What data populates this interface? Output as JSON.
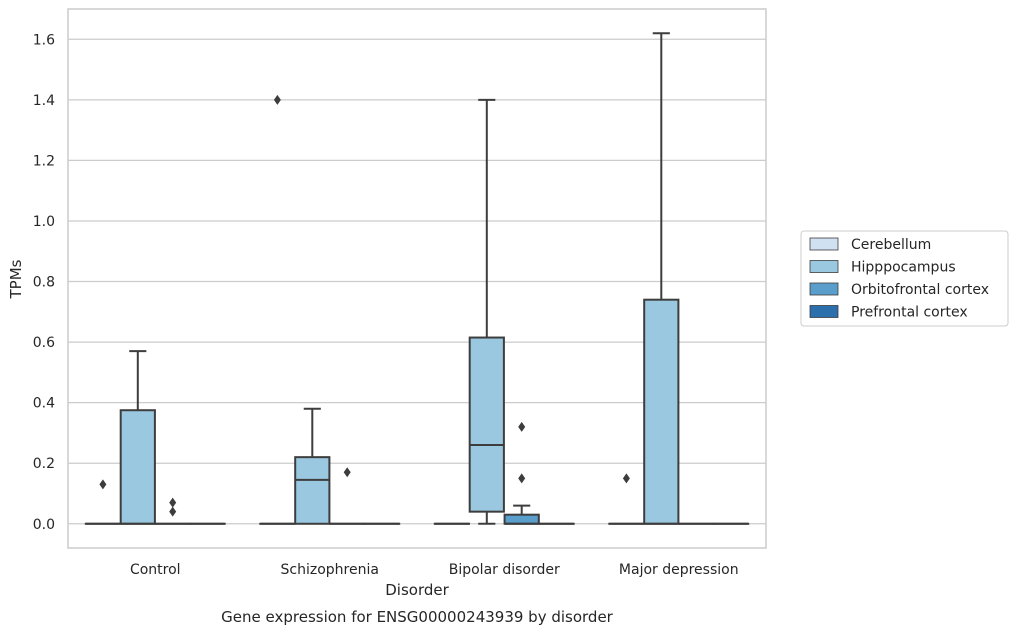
{
  "chart_data": {
    "type": "box",
    "title": "",
    "caption": "Gene expression for ENSG00000243939 by disorder",
    "xlabel": "Disorder",
    "ylabel": "TPMs",
    "ylim": [
      -0.08,
      1.7
    ],
    "yticks": [
      "0.0",
      "0.2",
      "0.4",
      "0.6",
      "0.8",
      "1.0",
      "1.2",
      "1.4",
      "1.6"
    ],
    "grid": true,
    "legend_position": "center-right",
    "categories": [
      "Control",
      "Schizophrenia",
      "Bipolar disorder",
      "Major depression"
    ],
    "series": [
      {
        "name": "Cerebellum",
        "color": "#d0e1f2",
        "boxes": [
          {
            "q1": 0,
            "median": 0,
            "q3": 0,
            "whislo": 0,
            "whishi": 0,
            "fliers": [
              0.13
            ]
          },
          {
            "q1": 0,
            "median": 0,
            "q3": 0,
            "whislo": 0,
            "whishi": 0,
            "fliers": [
              1.4
            ]
          },
          {
            "q1": 0,
            "median": 0,
            "q3": 0,
            "whislo": 0,
            "whishi": 0,
            "fliers": []
          },
          {
            "q1": 0,
            "median": 0,
            "q3": 0,
            "whislo": 0,
            "whishi": 0,
            "fliers": [
              0.15
            ]
          }
        ]
      },
      {
        "name": "Hipppocampus",
        "color": "#9ac8e0",
        "boxes": [
          {
            "q1": 0,
            "median": 0,
            "q3": 0.375,
            "whislo": 0,
            "whishi": 0.57,
            "fliers": []
          },
          {
            "q1": 0,
            "median": 0.145,
            "q3": 0.22,
            "whislo": 0,
            "whishi": 0.38,
            "fliers": []
          },
          {
            "q1": 0.04,
            "median": 0.26,
            "q3": 0.615,
            "whislo": 0,
            "whishi": 1.4,
            "fliers": []
          },
          {
            "q1": 0,
            "median": 0,
            "q3": 0.74,
            "whislo": 0,
            "whishi": 1.62,
            "fliers": []
          }
        ]
      },
      {
        "name": "Orbitofrontal cortex",
        "color": "#5a9ecb",
        "boxes": [
          {
            "q1": 0,
            "median": 0,
            "q3": 0,
            "whislo": 0,
            "whishi": 0,
            "fliers": [
              0.04,
              0.07
            ]
          },
          {
            "q1": 0,
            "median": 0,
            "q3": 0,
            "whislo": 0,
            "whishi": 0,
            "fliers": [
              0.17
            ]
          },
          {
            "q1": 0,
            "median": 0,
            "q3": 0.03,
            "whislo": 0,
            "whishi": 0.06,
            "fliers": [
              0.15,
              0.32
            ]
          },
          {
            "q1": 0,
            "median": 0,
            "q3": 0,
            "whislo": 0,
            "whishi": 0,
            "fliers": []
          }
        ]
      },
      {
        "name": "Prefrontal cortex",
        "color": "#2c6fad",
        "boxes": [
          {
            "q1": 0,
            "median": 0,
            "q3": 0,
            "whislo": 0,
            "whishi": 0,
            "fliers": []
          },
          {
            "q1": 0,
            "median": 0,
            "q3": 0,
            "whislo": 0,
            "whishi": 0,
            "fliers": []
          },
          {
            "q1": 0,
            "median": 0,
            "q3": 0,
            "whislo": 0,
            "whishi": 0,
            "fliers": []
          },
          {
            "q1": 0,
            "median": 0,
            "q3": 0,
            "whislo": 0,
            "whishi": 0,
            "fliers": []
          }
        ]
      }
    ]
  }
}
